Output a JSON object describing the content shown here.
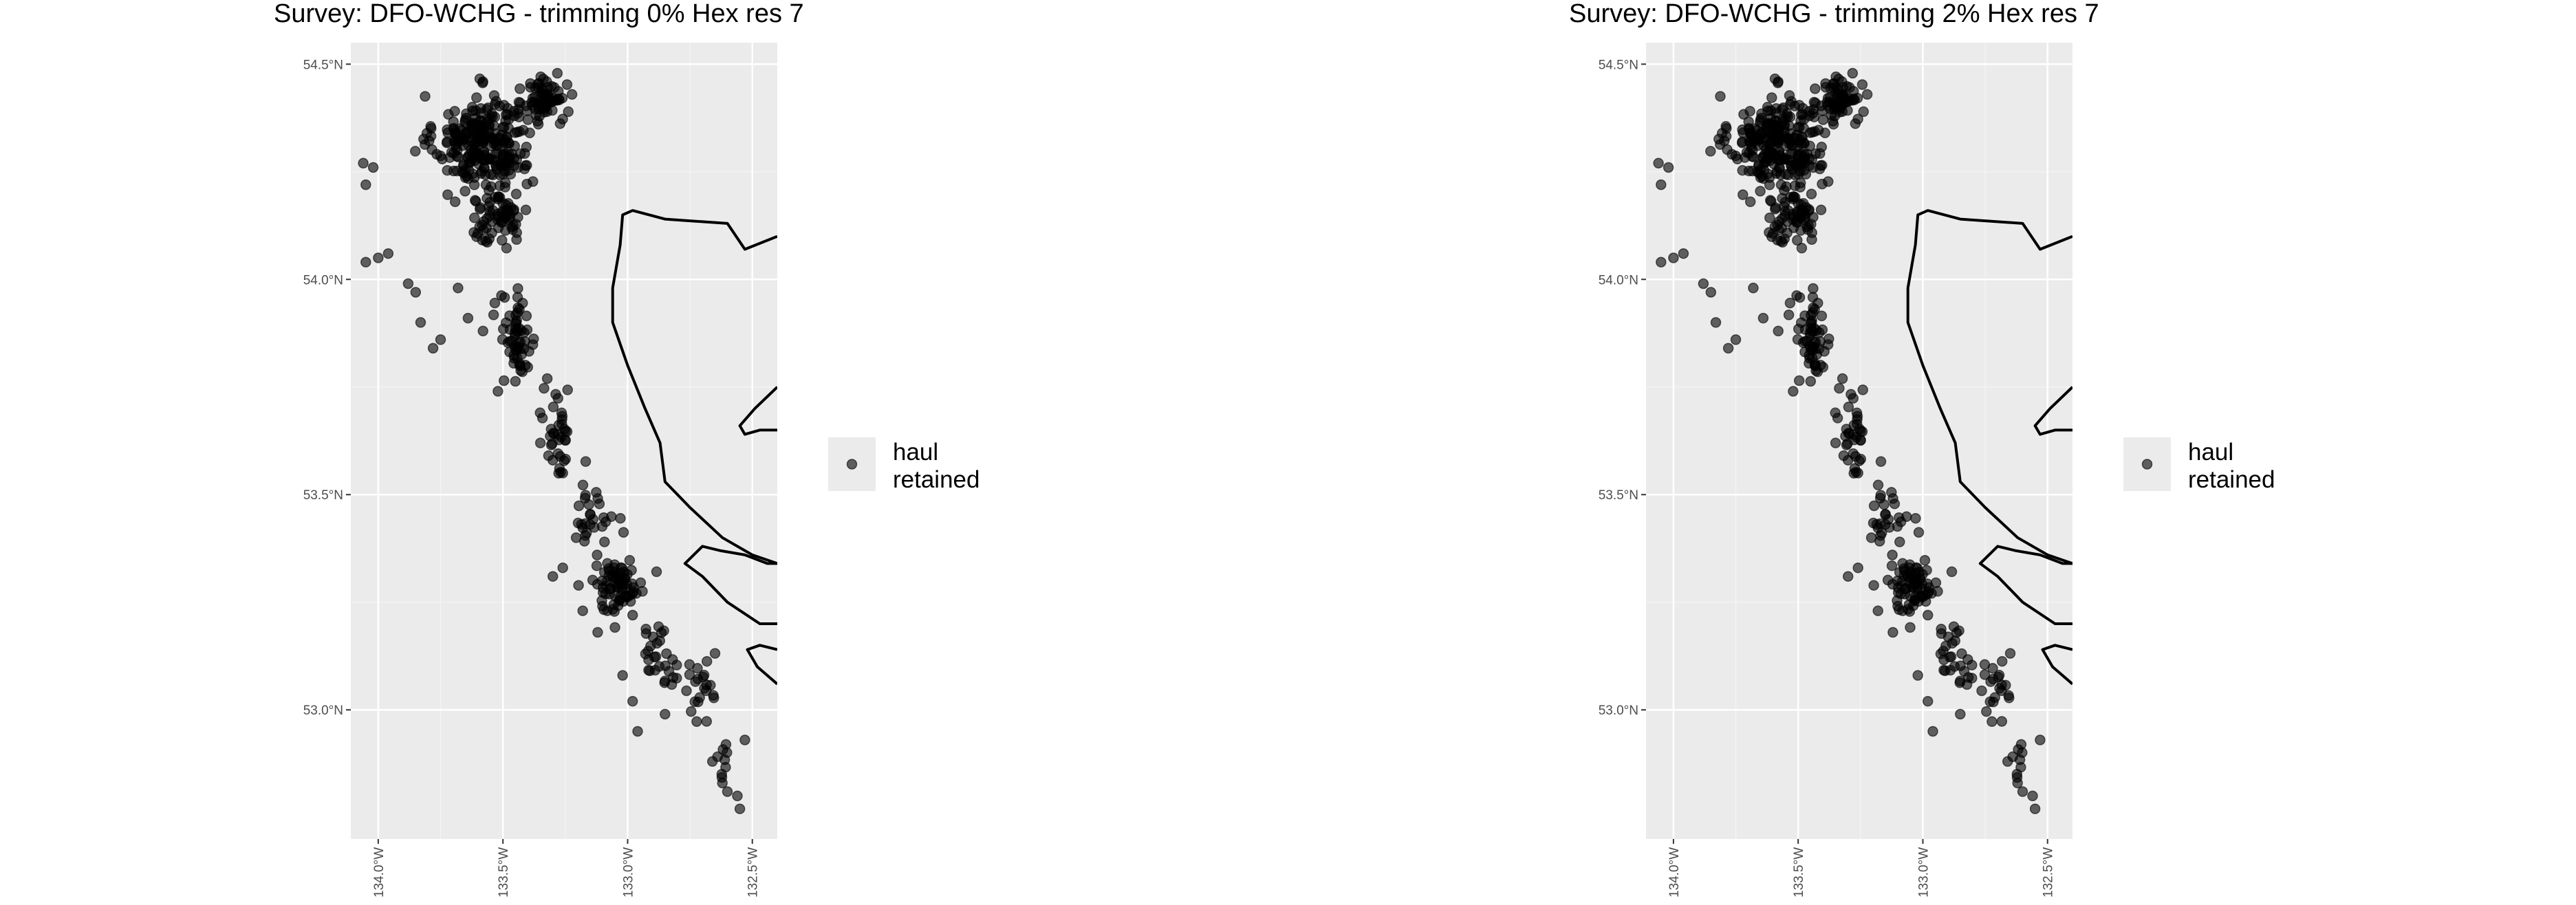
{
  "chart_data": [
    {
      "type": "scatter",
      "title": "Survey: DFO-WCHG - trimming 0% Hex res 7",
      "xlabel": "",
      "ylabel": "",
      "xlim": [
        -134.11,
        -132.4
      ],
      "ylim": [
        52.7,
        54.55
      ],
      "x_ticks": [
        {
          "value": -134.0,
          "label": "134.0°W"
        },
        {
          "value": -133.5,
          "label": "133.5°W"
        },
        {
          "value": -133.0,
          "label": "133.0°W"
        },
        {
          "value": -132.5,
          "label": "132.5°W"
        }
      ],
      "y_ticks": [
        {
          "value": 53.0,
          "label": "53.0°N"
        },
        {
          "value": 53.5,
          "label": "53.5°N"
        },
        {
          "value": 54.0,
          "label": "54.0°N"
        },
        {
          "value": 54.5,
          "label": "54.5°N"
        }
      ],
      "legend": {
        "position": "right",
        "entries": [
          {
            "label": "haul\nretained",
            "line1": "haul",
            "line2": "retained",
            "color": "#333333"
          }
        ]
      },
      "grid": true,
      "panel_background": "#ebebeb",
      "point_color": "#000000",
      "point_alpha": 0.6,
      "coastline_color": "#000000"
    },
    {
      "type": "scatter",
      "title": "Survey: DFO-WCHG - trimming 2% Hex res 7",
      "xlabel": "",
      "ylabel": "",
      "xlim": [
        -134.11,
        -132.4
      ],
      "ylim": [
        52.7,
        54.55
      ],
      "x_ticks": [
        {
          "value": -134.0,
          "label": "134.0°W"
        },
        {
          "value": -133.5,
          "label": "133.5°W"
        },
        {
          "value": -133.0,
          "label": "133.0°W"
        },
        {
          "value": -132.5,
          "label": "132.5°W"
        }
      ],
      "y_ticks": [
        {
          "value": 53.0,
          "label": "53.0°N"
        },
        {
          "value": 53.5,
          "label": "53.5°N"
        },
        {
          "value": 54.0,
          "label": "54.0°N"
        },
        {
          "value": 54.5,
          "label": "54.5°N"
        }
      ],
      "legend": {
        "position": "right",
        "entries": [
          {
            "label": "haul\nretained",
            "line1": "haul",
            "line2": "retained",
            "color": "#333333"
          }
        ]
      },
      "grid": true,
      "panel_background": "#ebebeb",
      "point_color": "#000000",
      "point_alpha": 0.6,
      "coastline_color": "#000000"
    }
  ],
  "haul_clusters": [
    {
      "lon": -133.58,
      "lat": 54.32,
      "spread_lon": 0.16,
      "spread_lat": 0.09,
      "n": 260
    },
    {
      "lon": -133.33,
      "lat": 54.42,
      "spread_lon": 0.07,
      "spread_lat": 0.05,
      "n": 70
    },
    {
      "lon": -133.52,
      "lat": 54.15,
      "spread_lon": 0.1,
      "spread_lat": 0.06,
      "n": 70
    },
    {
      "lon": -133.44,
      "lat": 53.86,
      "spread_lon": 0.06,
      "spread_lat": 0.09,
      "n": 60
    },
    {
      "lon": -133.28,
      "lat": 53.65,
      "spread_lon": 0.05,
      "spread_lat": 0.09,
      "n": 35
    },
    {
      "lon": -133.14,
      "lat": 53.45,
      "spread_lon": 0.07,
      "spread_lat": 0.07,
      "n": 30
    },
    {
      "lon": -133.04,
      "lat": 53.29,
      "spread_lon": 0.09,
      "spread_lat": 0.05,
      "n": 75
    },
    {
      "lon": -132.88,
      "lat": 53.13,
      "spread_lon": 0.06,
      "spread_lat": 0.06,
      "n": 28
    },
    {
      "lon": -132.7,
      "lat": 53.04,
      "spread_lon": 0.06,
      "spread_lat": 0.06,
      "n": 22
    },
    {
      "lon": -132.62,
      "lat": 52.86,
      "spread_lon": 0.04,
      "spread_lat": 0.06,
      "n": 8
    }
  ],
  "haul_outliers": [
    [
      -134.05,
      54.04
    ],
    [
      -134.0,
      54.05
    ],
    [
      -133.96,
      54.06
    ],
    [
      -134.02,
      54.26
    ],
    [
      -134.06,
      54.27
    ],
    [
      -134.05,
      54.22
    ],
    [
      -133.88,
      53.99
    ],
    [
      -133.85,
      53.97
    ],
    [
      -133.83,
      53.9
    ],
    [
      -133.78,
      53.84
    ],
    [
      -133.75,
      53.86
    ],
    [
      -133.68,
      53.98
    ],
    [
      -133.64,
      53.91
    ],
    [
      -133.58,
      53.88
    ],
    [
      -133.52,
      53.74
    ],
    [
      -133.35,
      53.62
    ],
    [
      -133.3,
      53.58
    ],
    [
      -133.26,
      53.55
    ],
    [
      -133.3,
      53.31
    ],
    [
      -133.26,
      53.33
    ],
    [
      -133.18,
      53.23
    ],
    [
      -133.12,
      53.18
    ],
    [
      -132.98,
      53.22
    ],
    [
      -133.02,
      53.08
    ],
    [
      -132.98,
      53.02
    ],
    [
      -132.96,
      52.95
    ],
    [
      -132.85,
      52.99
    ],
    [
      -132.66,
      52.88
    ],
    [
      -132.62,
      52.83
    ],
    [
      -132.6,
      52.81
    ],
    [
      -132.56,
      52.8
    ],
    [
      -132.55,
      52.77
    ],
    [
      -132.53,
      52.93
    ]
  ],
  "coastlines": [
    [
      [
        -132.4,
        54.1
      ],
      [
        -132.53,
        54.07
      ],
      [
        -132.6,
        54.13
      ],
      [
        -132.85,
        54.14
      ],
      [
        -132.98,
        54.16
      ],
      [
        -133.02,
        54.15
      ],
      [
        -133.03,
        54.08
      ],
      [
        -133.06,
        53.98
      ],
      [
        -133.06,
        53.9
      ],
      [
        -133.0,
        53.8
      ],
      [
        -132.93,
        53.7
      ],
      [
        -132.87,
        53.62
      ],
      [
        -132.85,
        53.53
      ],
      [
        -132.75,
        53.47
      ],
      [
        -132.62,
        53.4
      ],
      [
        -132.5,
        53.36
      ],
      [
        -132.4,
        53.34
      ]
    ],
    [
      [
        -132.4,
        53.75
      ],
      [
        -132.49,
        53.7
      ],
      [
        -132.55,
        53.66
      ],
      [
        -132.53,
        53.64
      ],
      [
        -132.47,
        53.65
      ],
      [
        -132.4,
        53.65
      ]
    ],
    [
      [
        -132.4,
        53.2
      ],
      [
        -132.47,
        53.2
      ],
      [
        -132.6,
        53.25
      ],
      [
        -132.7,
        53.31
      ],
      [
        -132.77,
        53.34
      ],
      [
        -132.7,
        53.38
      ],
      [
        -132.63,
        53.37
      ],
      [
        -132.53,
        53.36
      ],
      [
        -132.44,
        53.34
      ],
      [
        -132.4,
        53.34
      ]
    ],
    [
      [
        -132.4,
        53.06
      ],
      [
        -132.48,
        53.1
      ],
      [
        -132.52,
        53.14
      ],
      [
        -132.47,
        53.15
      ],
      [
        -132.4,
        53.14
      ]
    ]
  ]
}
